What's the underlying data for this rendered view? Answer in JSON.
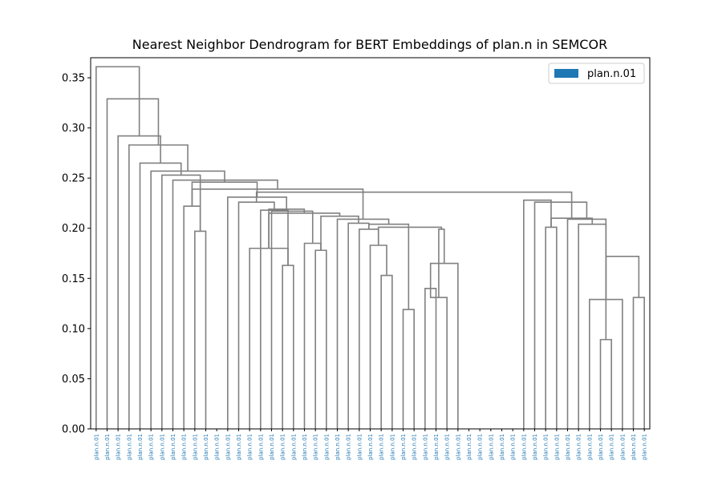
{
  "chart_data": {
    "type": "dendrogram",
    "title": "Nearest Neighbor Dendrogram for BERT Embeddings of plan.n in SEMCOR",
    "xlabel": "",
    "ylabel": "",
    "ylim": [
      0,
      0.37
    ],
    "yticks": [
      "0.00",
      "0.05",
      "0.10",
      "0.15",
      "0.20",
      "0.25",
      "0.30",
      "0.35"
    ],
    "ytick_values": [
      0,
      0.05,
      0.1,
      0.15,
      0.2,
      0.25,
      0.3,
      0.35
    ],
    "leaf_labels": [
      "plan.n.01",
      "plan.n.01",
      "plan.n.01",
      "plan.n.01",
      "plan.n.01",
      "plan.n.01",
      "plan.n.01",
      "plan.n.01",
      "plan.n.01",
      "plan.n.01",
      "plan.n.01",
      "plan.n.01",
      "plan.n.01",
      "plan.n.01",
      "plan.n.01",
      "plan.n.01",
      "plan.n.01",
      "plan.n.01",
      "plan.n.01",
      "plan.n.01",
      "plan.n.01",
      "plan.n.01",
      "plan.n.01",
      "plan.n.01",
      "plan.n.01",
      "plan.n.01",
      "plan.n.01",
      "plan.n.01",
      "plan.n.01",
      "plan.n.01",
      "plan.n.01",
      "plan.n.01",
      "plan.n.01",
      "plan.n.01",
      "plan.n.01",
      "plan.n.01",
      "plan.n.01",
      "plan.n.01",
      "plan.n.01",
      "plan.n.01",
      "plan.n.01",
      "plan.n.01",
      "plan.n.01",
      "plan.n.01",
      "plan.n.01",
      "plan.n.01",
      "plan.n.01",
      "plan.n.01",
      "plan.n.01",
      "plan.n.01",
      "plan.n.01"
    ],
    "merges": [
      [
        41,
        42,
        0.201
      ],
      [
        46,
        47,
        0.089
      ],
      [
        45,
        48,
        0.129
      ],
      [
        49,
        50,
        0.131
      ],
      [
        48,
        50,
        0.172
      ],
      [
        44,
        47,
        0.204
      ],
      [
        43,
        45,
        0.209
      ],
      [
        42,
        44,
        0.21
      ],
      [
        40,
        43,
        0.226
      ],
      [
        39,
        41,
        0.228
      ],
      [
        17,
        18,
        0.163
      ],
      [
        14,
        17,
        0.18
      ],
      [
        20,
        21,
        0.178
      ],
      [
        19,
        20,
        0.185
      ],
      [
        26,
        27,
        0.153
      ],
      [
        25,
        26,
        0.183
      ],
      [
        28,
        29,
        0.119
      ],
      [
        30,
        31,
        0.14
      ],
      [
        30,
        32,
        0.131
      ],
      [
        31,
        33,
        0.165
      ],
      [
        30,
        33,
        0.199
      ],
      [
        24,
        26,
        0.199
      ],
      [
        25,
        30,
        0.201
      ],
      [
        24,
        28,
        0.204
      ],
      [
        23,
        26,
        0.205
      ],
      [
        22,
        24,
        0.209
      ],
      [
        21,
        23,
        0.212
      ],
      [
        17,
        21,
        0.215
      ],
      [
        16,
        19,
        0.217
      ],
      [
        15,
        18,
        0.218
      ],
      [
        14,
        17,
        0.219
      ],
      [
        13,
        15,
        0.226
      ],
      [
        12,
        14,
        0.231
      ],
      [
        9,
        10,
        0.197
      ],
      [
        8,
        10,
        0.222
      ],
      [
        13,
        42,
        0.236
      ],
      [
        10,
        22,
        0.239
      ],
      [
        8,
        12,
        0.246
      ],
      [
        7,
        10,
        0.248
      ],
      [
        6,
        9,
        0.253
      ],
      [
        5,
        8,
        0.257
      ],
      [
        4,
        6,
        0.265
      ],
      [
        3,
        5,
        0.283
      ],
      [
        2,
        4,
        0.292
      ],
      [
        1,
        3,
        0.329
      ],
      [
        0,
        2,
        0.361
      ]
    ],
    "legend": {
      "entries": [
        {
          "name": "plan.n.01",
          "color": "#1f77b4"
        }
      ],
      "placement": "top-right"
    },
    "colors": {
      "link": "#808080",
      "leaf_label": "#1f77b4"
    },
    "grid": false
  }
}
